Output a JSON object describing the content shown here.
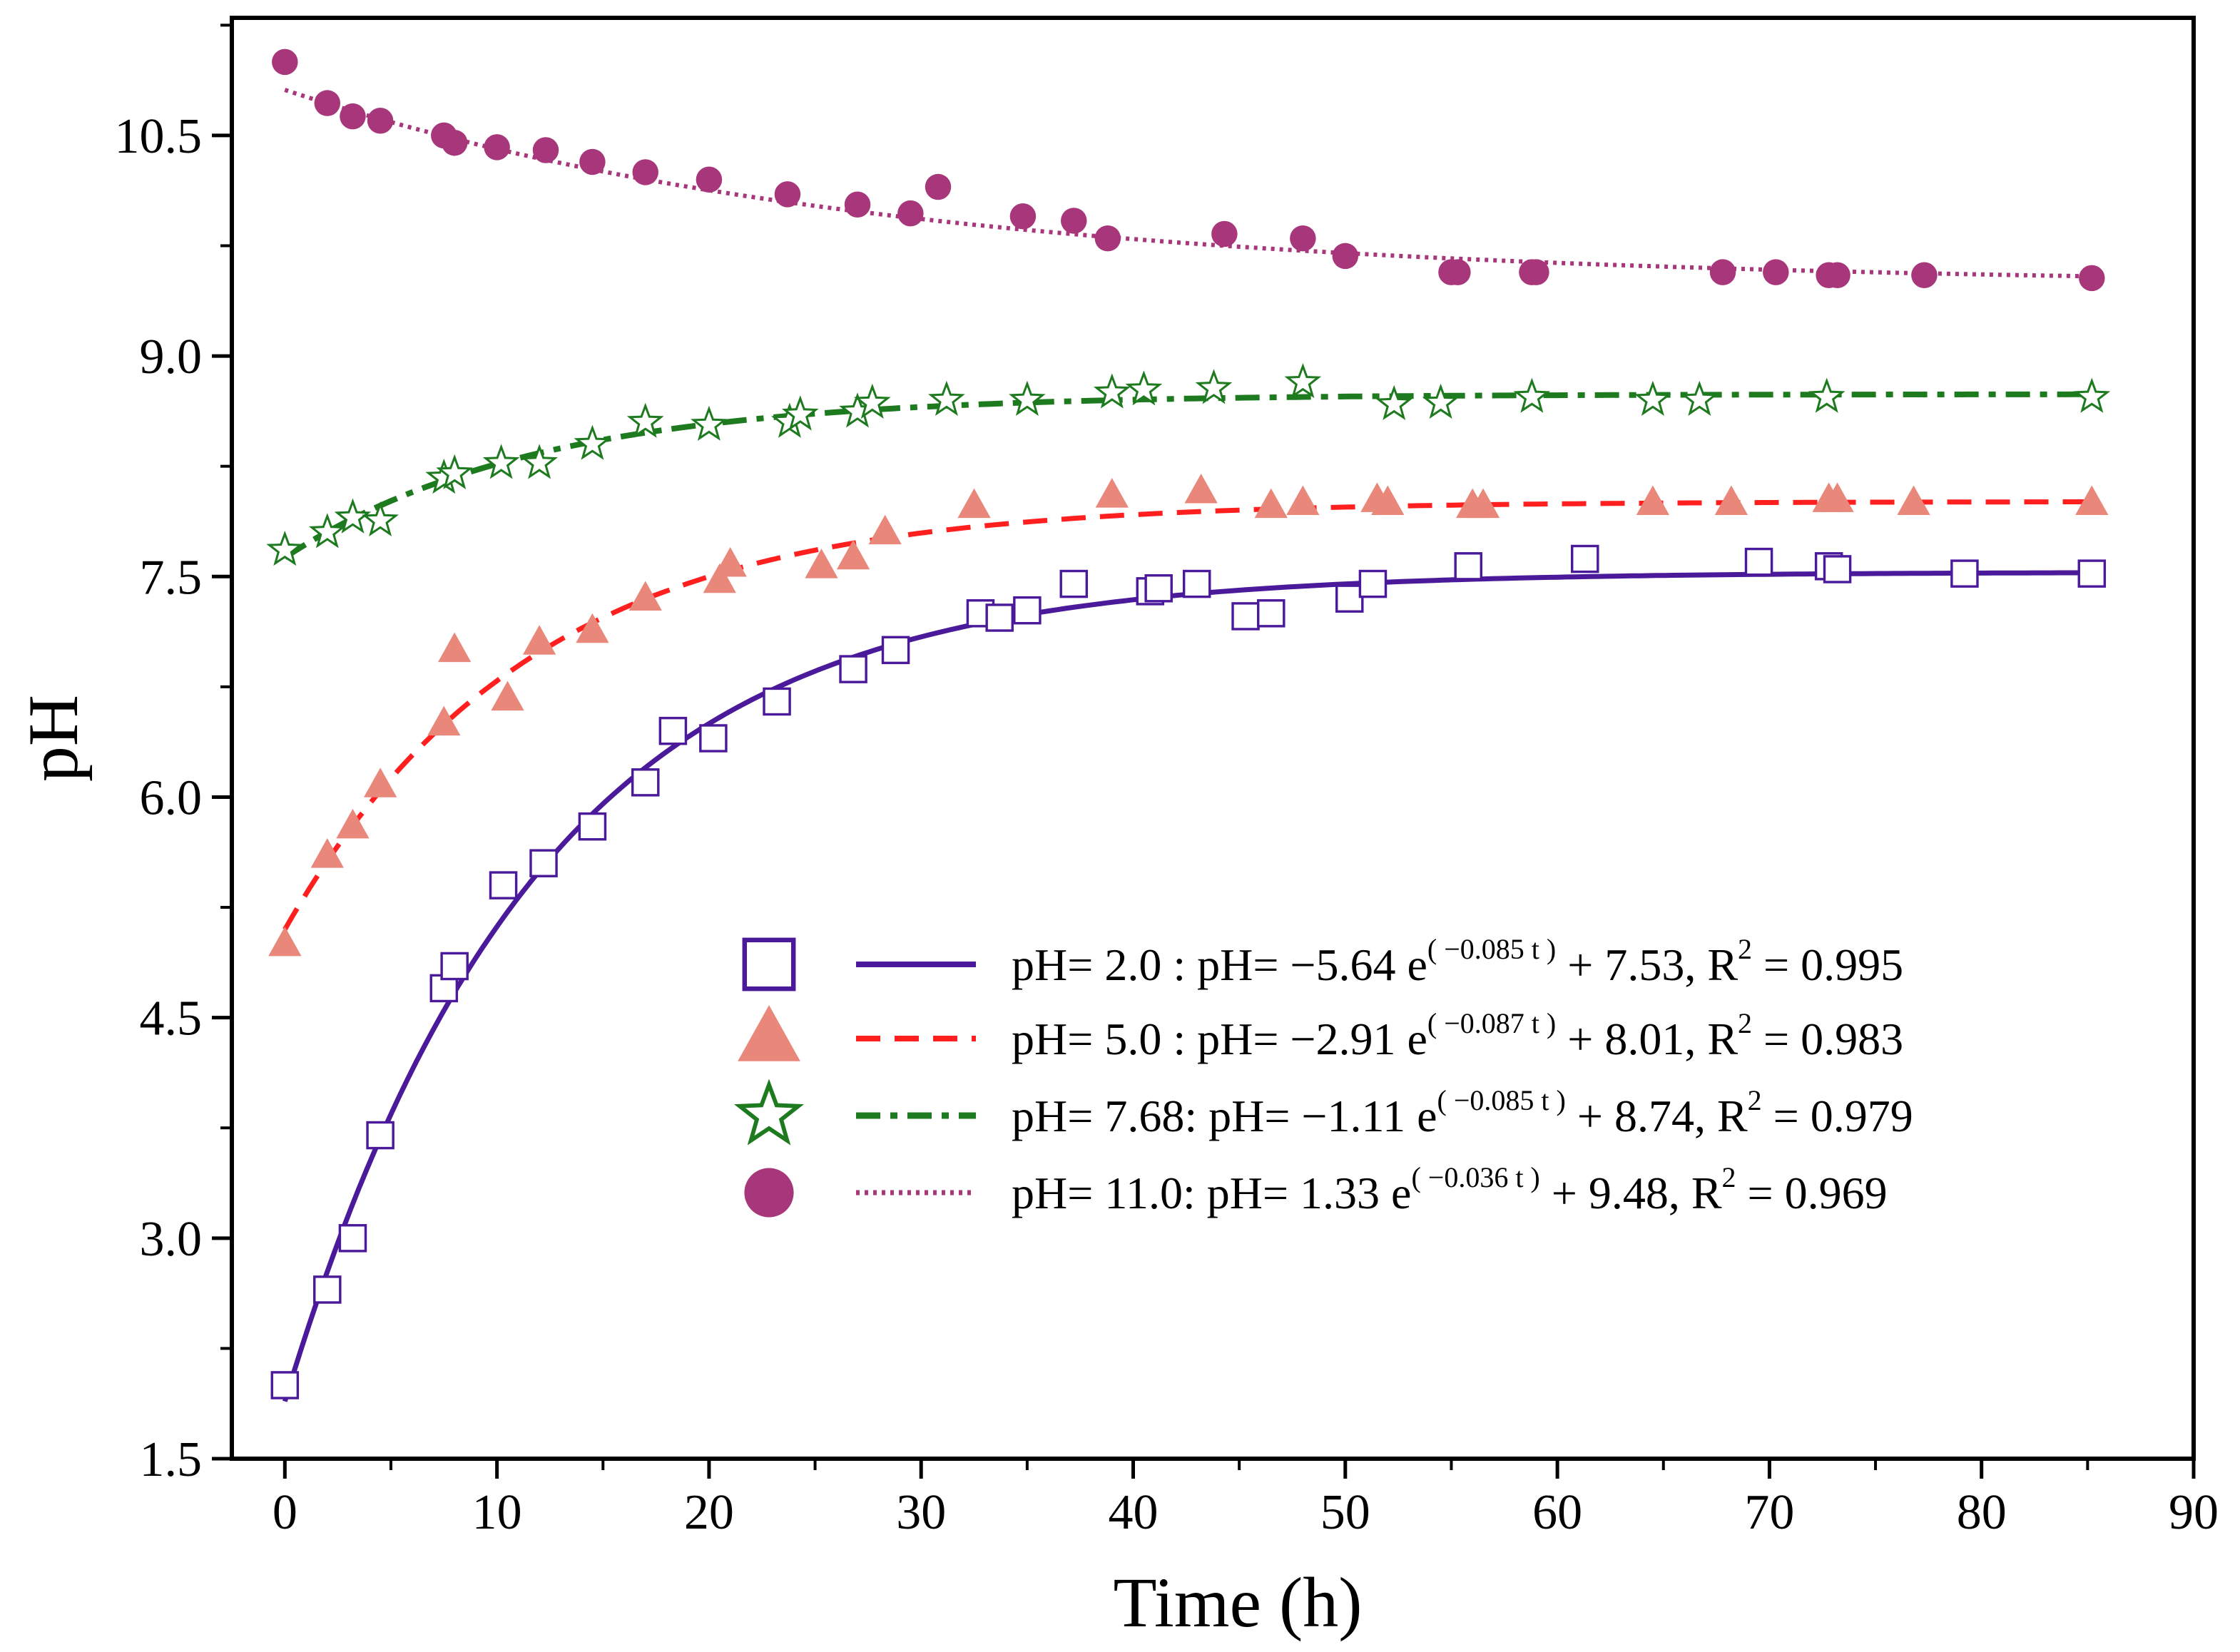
{
  "chart_data": {
    "type": "scatter",
    "xlabel": "Time (h)",
    "ylabel": "pH",
    "xlim": [
      -2.5,
      90
    ],
    "ylim": [
      1.5,
      11.3
    ],
    "xticks": [
      0,
      10,
      20,
      30,
      40,
      50,
      60,
      70,
      80,
      90
    ],
    "xtick_labels": [
      "0",
      "10",
      "20",
      "30",
      "40",
      "50",
      "60",
      "70",
      "80",
      "90"
    ],
    "yticks": [
      1.5,
      3.0,
      4.5,
      6.0,
      7.5,
      9.0,
      10.5
    ],
    "ytick_labels": [
      "1.5",
      "3.0",
      "4.5",
      "6.0",
      "7.5",
      "9.0",
      "10.5"
    ],
    "legend_position": "center-right",
    "series": [
      {
        "name": "pH= 2.0",
        "marker": "open-square",
        "line_style": "solid",
        "color": "#4B1A9A",
        "fit": {
          "a": -5.64,
          "k": 0.085,
          "c": 7.53,
          "r2": 0.995
        },
        "label_prefix": "pH= 2.0  : pH= −5.64 e",
        "label_exp": "( −0.085 t )",
        "label_mid": " + 7.53, R",
        "label_sup": "2",
        "label_tail": " = 0.995",
        "points": [
          [
            0,
            2.0
          ],
          [
            2,
            2.65
          ],
          [
            3.2,
            3.0
          ],
          [
            4.5,
            3.7
          ],
          [
            7.5,
            4.7
          ],
          [
            8,
            4.85
          ],
          [
            10.3,
            5.4
          ],
          [
            12.2,
            5.55
          ],
          [
            14.5,
            5.8
          ],
          [
            17,
            6.1
          ],
          [
            18.3,
            6.45
          ],
          [
            20.2,
            6.4
          ],
          [
            23.2,
            6.65
          ],
          [
            26.8,
            6.87
          ],
          [
            28.8,
            7.0
          ],
          [
            32.8,
            7.25
          ],
          [
            33.7,
            7.22
          ],
          [
            35,
            7.27
          ],
          [
            37.2,
            7.45
          ],
          [
            40.8,
            7.4
          ],
          [
            41.2,
            7.42
          ],
          [
            43,
            7.45
          ],
          [
            45.3,
            7.23
          ],
          [
            46.5,
            7.25
          ],
          [
            50.2,
            7.35
          ],
          [
            51.3,
            7.45
          ],
          [
            55.8,
            7.57
          ],
          [
            61.3,
            7.62
          ],
          [
            69.5,
            7.6
          ],
          [
            72.8,
            7.57
          ],
          [
            73.2,
            7.55
          ],
          [
            79.2,
            7.52
          ],
          [
            85.2,
            7.52
          ]
        ]
      },
      {
        "name": "pH= 5.0",
        "marker": "triangle",
        "line_style": "dashed",
        "color": "#E8877A",
        "line_color": "#FF1F1F",
        "fit": {
          "a": -2.91,
          "k": 0.087,
          "c": 8.01,
          "r2": 0.983
        },
        "label_prefix": "pH= 5.0  : pH= −2.91 e",
        "label_exp": "( −0.087 t )",
        "label_mid": " + 8.01, R",
        "label_sup": "2",
        "label_tail": " = 0.983",
        "points": [
          [
            0,
            5.0
          ],
          [
            2,
            5.6
          ],
          [
            3.2,
            5.8
          ],
          [
            4.5,
            6.08
          ],
          [
            7.5,
            6.5
          ],
          [
            8,
            7.0
          ],
          [
            10.5,
            6.67
          ],
          [
            12,
            7.05
          ],
          [
            14.5,
            7.13
          ],
          [
            17,
            7.35
          ],
          [
            20.5,
            7.47
          ],
          [
            21,
            7.58
          ],
          [
            25.3,
            7.57
          ],
          [
            26.8,
            7.63
          ],
          [
            28.3,
            7.8
          ],
          [
            32.5,
            7.98
          ],
          [
            39,
            8.05
          ],
          [
            43.2,
            8.08
          ],
          [
            46.5,
            7.98
          ],
          [
            48,
            8.0
          ],
          [
            51.5,
            8.02
          ],
          [
            52,
            8.0
          ],
          [
            56,
            7.98
          ],
          [
            56.5,
            7.98
          ],
          [
            64.5,
            8.0
          ],
          [
            68.2,
            8.0
          ],
          [
            72.8,
            8.02
          ],
          [
            73.2,
            8.02
          ],
          [
            76.8,
            8.0
          ],
          [
            85.2,
            8.0
          ]
        ]
      },
      {
        "name": "pH= 7.68",
        "marker": "open-star",
        "line_style": "dash-dot",
        "color": "#1E7A1E",
        "fit": {
          "a": -1.11,
          "k": 0.085,
          "c": 8.74,
          "r2": 0.979
        },
        "label_prefix": "pH= 7.68: pH= −1.11 e",
        "label_exp": "( −0.085 t )",
        "label_mid": " + 8.74, R",
        "label_sup": "2",
        "label_tail": " = 0.979",
        "points": [
          [
            0,
            7.68
          ],
          [
            2,
            7.8
          ],
          [
            3.2,
            7.9
          ],
          [
            4.5,
            7.88
          ],
          [
            7.5,
            8.17
          ],
          [
            8,
            8.2
          ],
          [
            10.2,
            8.27
          ],
          [
            12,
            8.27
          ],
          [
            14.5,
            8.4
          ],
          [
            17,
            8.55
          ],
          [
            20,
            8.53
          ],
          [
            23.8,
            8.55
          ],
          [
            24.3,
            8.6
          ],
          [
            27,
            8.62
          ],
          [
            27.7,
            8.68
          ],
          [
            31.2,
            8.7
          ],
          [
            35,
            8.7
          ],
          [
            39,
            8.75
          ],
          [
            40.5,
            8.77
          ],
          [
            43.8,
            8.78
          ],
          [
            48,
            8.82
          ],
          [
            52.3,
            8.67
          ],
          [
            54.5,
            8.68
          ],
          [
            58.8,
            8.72
          ],
          [
            64.5,
            8.7
          ],
          [
            66.7,
            8.7
          ],
          [
            72.7,
            8.72
          ],
          [
            85.2,
            8.72
          ]
        ]
      },
      {
        "name": "pH= 11.0",
        "marker": "filled-circle",
        "line_style": "dotted",
        "color": "#A8367A",
        "fit": {
          "a": 1.33,
          "k": 0.036,
          "c": 9.48,
          "r2": 0.969
        },
        "label_prefix": "pH= 11.0: pH=   1.33 e",
        "label_exp": "( −0.036 t )",
        "label_mid": " + 9.48, R",
        "label_sup": "2",
        "label_tail": " = 0.969",
        "points": [
          [
            0,
            11.0
          ],
          [
            2,
            10.72
          ],
          [
            3.2,
            10.63
          ],
          [
            4.5,
            10.6
          ],
          [
            7.5,
            10.5
          ],
          [
            8,
            10.45
          ],
          [
            10,
            10.42
          ],
          [
            12.3,
            10.4
          ],
          [
            14.5,
            10.32
          ],
          [
            17,
            10.25
          ],
          [
            20,
            10.2
          ],
          [
            23.7,
            10.1
          ],
          [
            27,
            10.03
          ],
          [
            29.5,
            9.97
          ],
          [
            30.8,
            10.15
          ],
          [
            34.8,
            9.95
          ],
          [
            37.2,
            9.92
          ],
          [
            38.8,
            9.8
          ],
          [
            44.3,
            9.83
          ],
          [
            48,
            9.8
          ],
          [
            50,
            9.68
          ],
          [
            55,
            9.57
          ],
          [
            55.3,
            9.57
          ],
          [
            58.8,
            9.57
          ],
          [
            59,
            9.57
          ],
          [
            67.8,
            9.57
          ],
          [
            70.3,
            9.57
          ],
          [
            72.8,
            9.55
          ],
          [
            73.2,
            9.55
          ],
          [
            77.3,
            9.55
          ],
          [
            85.2,
            9.53
          ]
        ]
      }
    ]
  }
}
